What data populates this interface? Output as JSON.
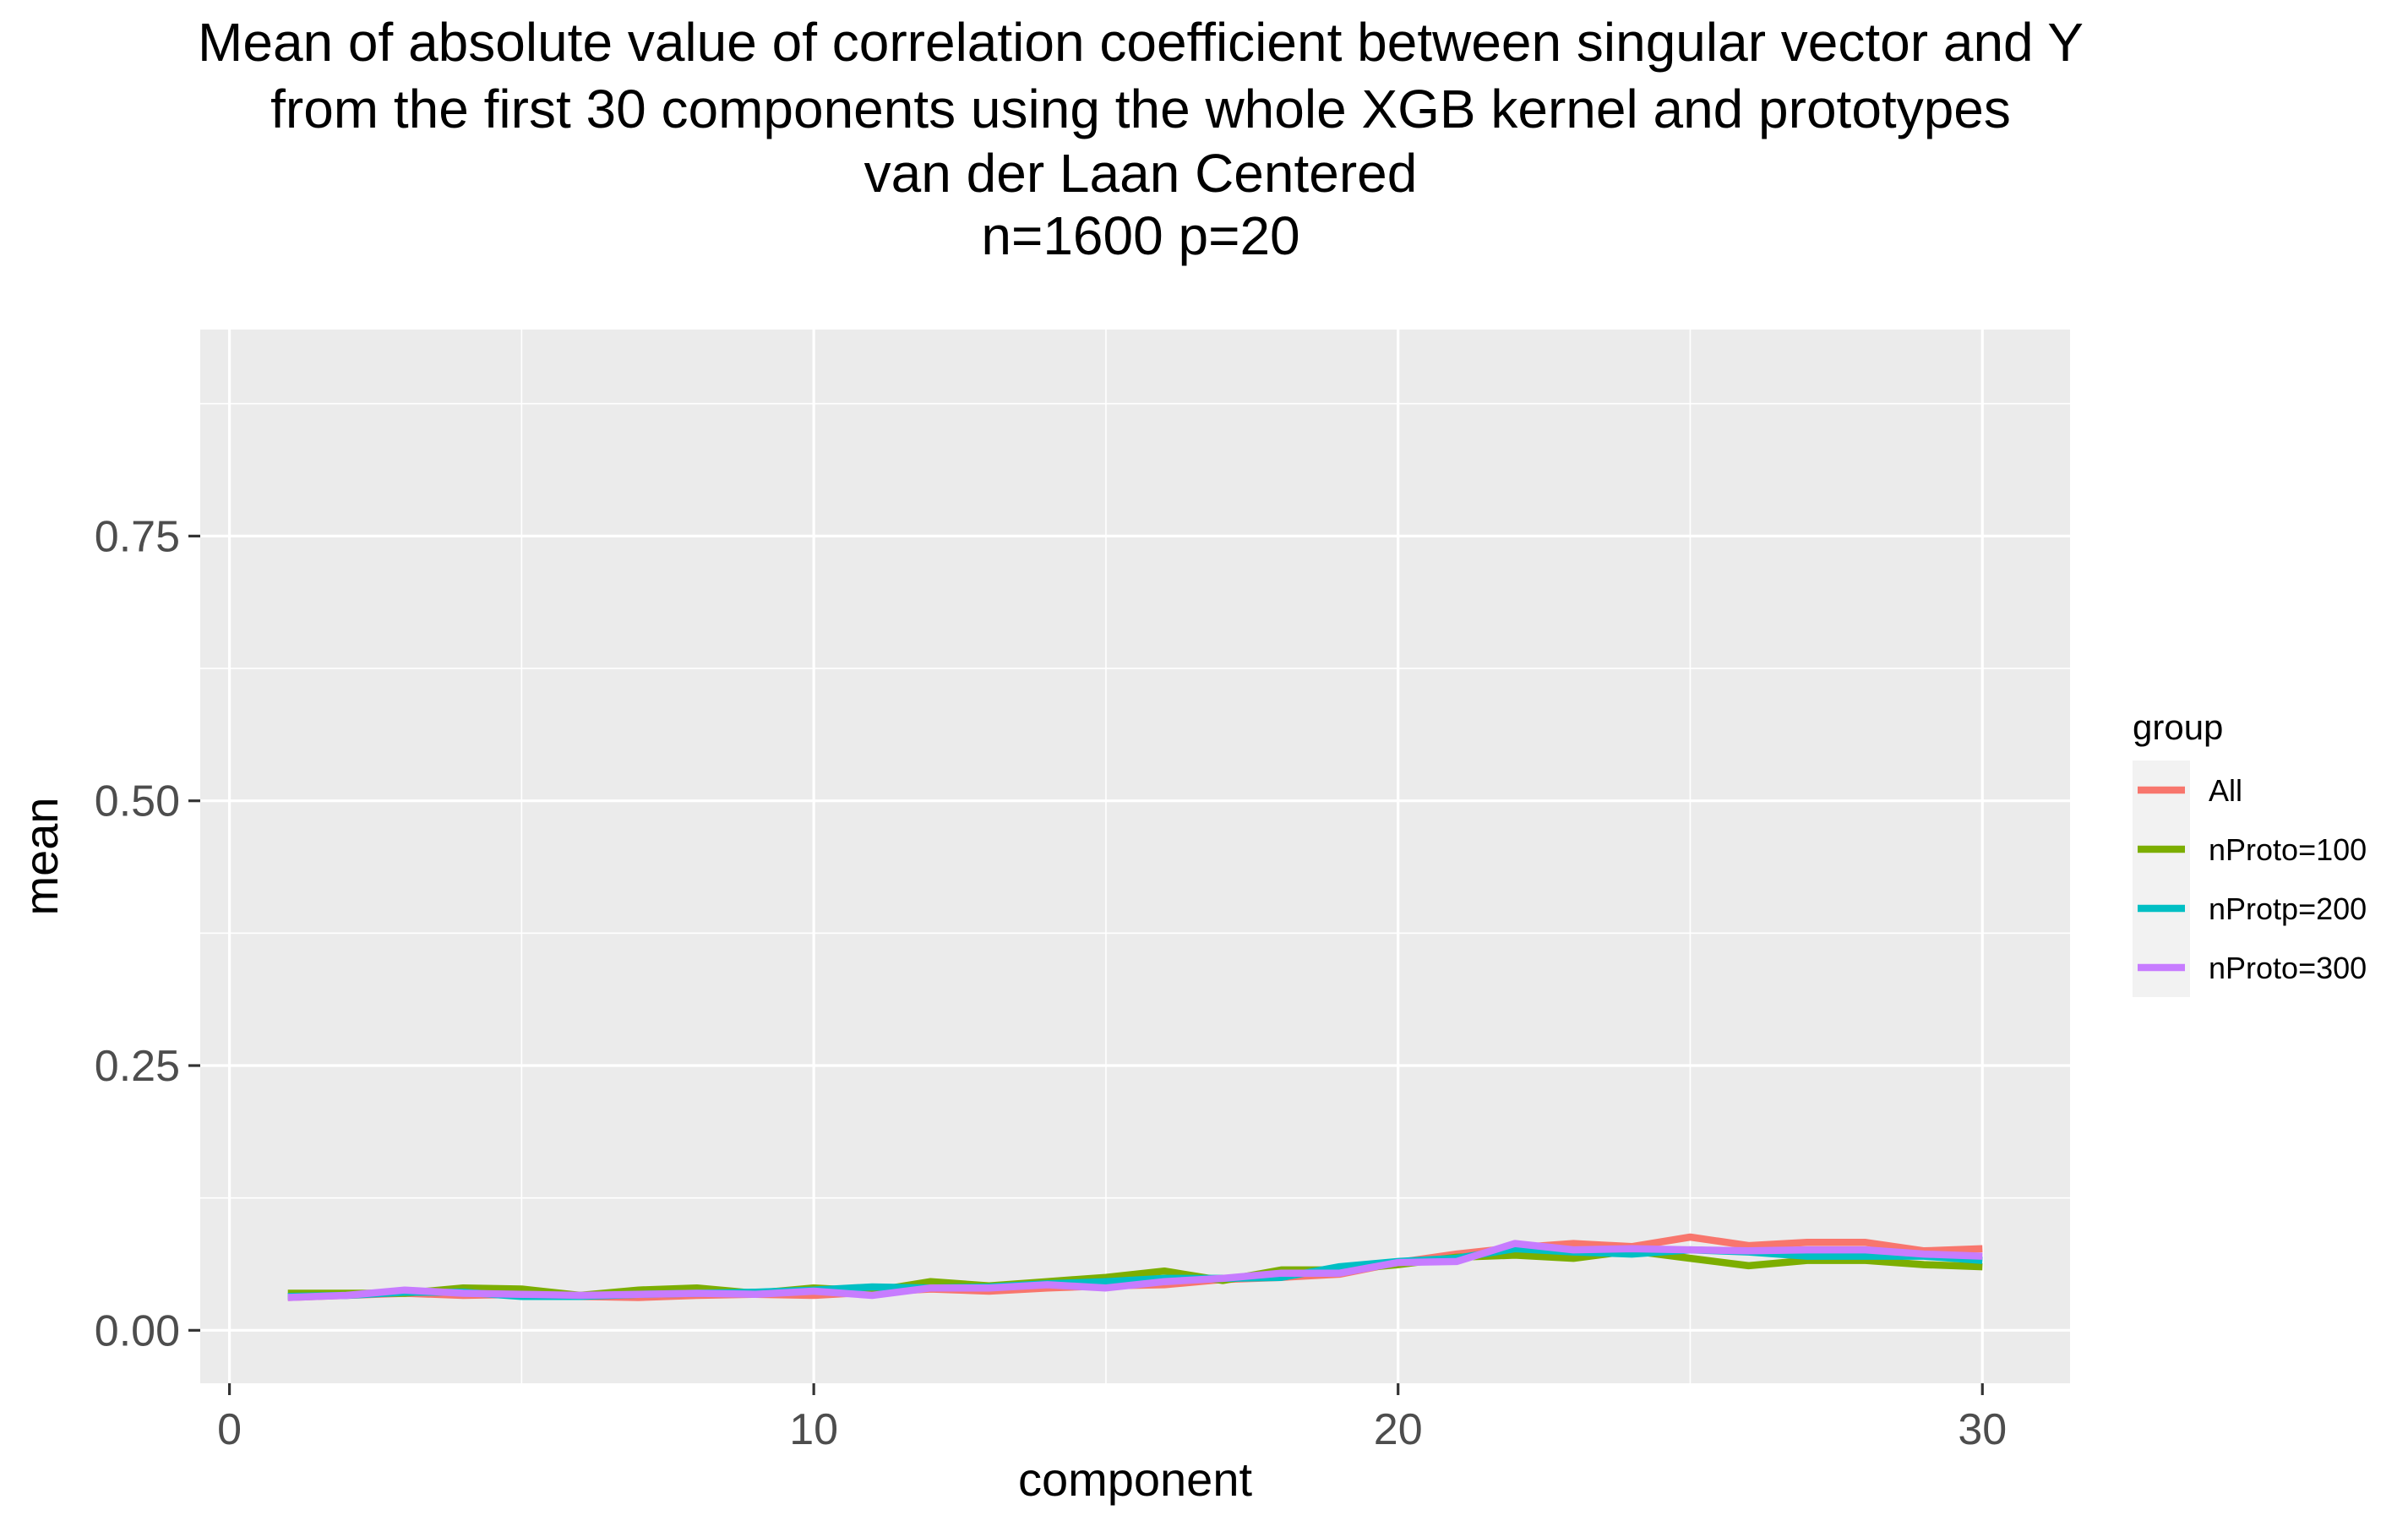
{
  "chart_data": {
    "type": "line",
    "title_lines": [
      "Mean of absolute value of correlation coefficient between singular vector and Y",
      "from the first 30 components using the whole XGB kernel and prototypes",
      "van der Laan Centered",
      "n=1600 p=20"
    ],
    "xlabel": "component",
    "ylabel": "mean",
    "xlim": [
      -0.5,
      31.5
    ],
    "ylim": [
      -0.05,
      0.945
    ],
    "x_ticks": [
      0,
      10,
      20,
      30
    ],
    "x_tick_labels": [
      "0",
      "10",
      "20",
      "30"
    ],
    "y_ticks": [
      0.0,
      0.25,
      0.5,
      0.75
    ],
    "y_tick_labels": [
      "0.00",
      "0.25",
      "0.50",
      "0.75"
    ],
    "grid": true,
    "legend_title": "group",
    "legend_position": "right",
    "x": [
      1,
      2,
      3,
      4,
      5,
      6,
      7,
      8,
      9,
      10,
      11,
      12,
      13,
      14,
      15,
      16,
      17,
      18,
      19,
      20,
      21,
      22,
      23,
      24,
      25,
      26,
      27,
      28,
      29,
      30
    ],
    "series": [
      {
        "name": "All",
        "color": "#F8766D",
        "values": [
          0.031,
          0.033,
          0.035,
          0.033,
          0.034,
          0.032,
          0.031,
          0.033,
          0.034,
          0.033,
          0.036,
          0.039,
          0.037,
          0.04,
          0.042,
          0.043,
          0.048,
          0.05,
          0.053,
          0.064,
          0.072,
          0.078,
          0.082,
          0.079,
          0.088,
          0.08,
          0.083,
          0.083,
          0.075,
          0.077
        ]
      },
      {
        "name": "nProto=100",
        "color": "#7CAE00",
        "values": [
          0.035,
          0.035,
          0.035,
          0.04,
          0.039,
          0.033,
          0.038,
          0.04,
          0.035,
          0.04,
          0.037,
          0.046,
          0.042,
          0.046,
          0.05,
          0.056,
          0.047,
          0.057,
          0.057,
          0.062,
          0.069,
          0.071,
          0.068,
          0.075,
          0.068,
          0.061,
          0.066,
          0.066,
          0.062,
          0.06
        ]
      },
      {
        "name": "nProtp=200",
        "color": "#00BFC4",
        "values": [
          0.032,
          0.033,
          0.036,
          0.036,
          0.032,
          0.032,
          0.034,
          0.035,
          0.036,
          0.038,
          0.041,
          0.04,
          0.041,
          0.044,
          0.046,
          0.049,
          0.049,
          0.05,
          0.06,
          0.065,
          0.068,
          0.077,
          0.074,
          0.072,
          0.076,
          0.074,
          0.07,
          0.07,
          0.07,
          0.066
        ]
      },
      {
        "name": "nProto=300",
        "color": "#C77CFF",
        "values": [
          0.031,
          0.033,
          0.038,
          0.035,
          0.034,
          0.033,
          0.034,
          0.035,
          0.034,
          0.037,
          0.033,
          0.04,
          0.04,
          0.043,
          0.04,
          0.046,
          0.049,
          0.054,
          0.054,
          0.064,
          0.065,
          0.082,
          0.076,
          0.077,
          0.076,
          0.075,
          0.076,
          0.076,
          0.072,
          0.07
        ]
      }
    ]
  }
}
